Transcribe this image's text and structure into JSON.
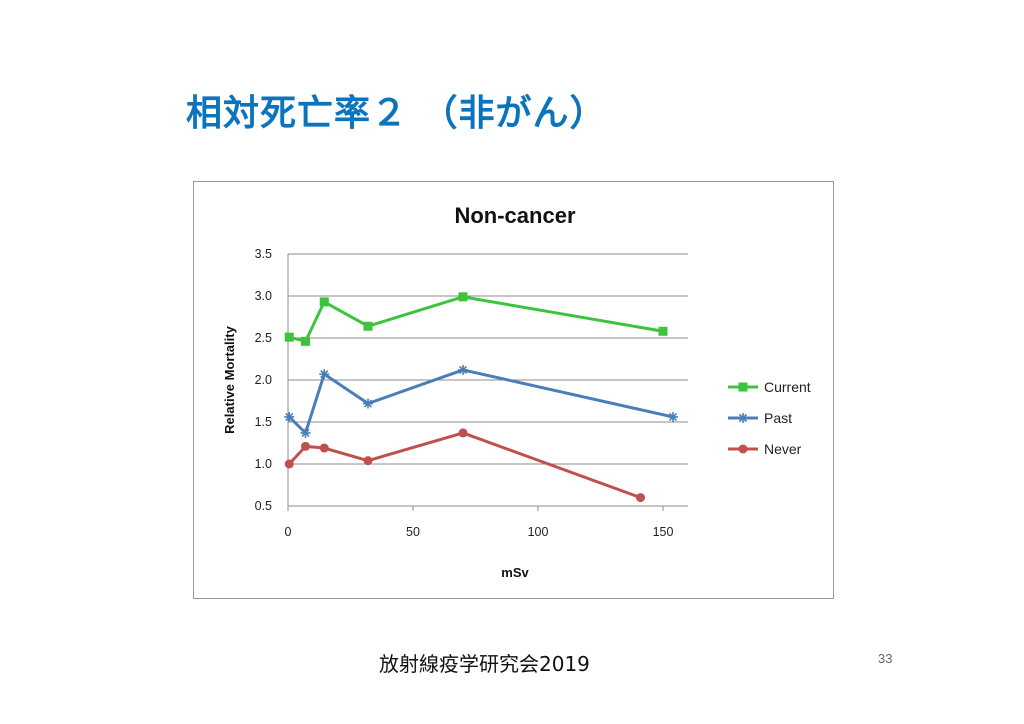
{
  "slide": {
    "title": "相対死亡率２ （非がん）",
    "footer": "放射線疫学研究会2019",
    "page_number": "33"
  },
  "chart_data": {
    "type": "line",
    "title": "Non-cancer",
    "xlabel": "mSv",
    "ylabel": "Relative Mortality",
    "xlim": [
      0,
      160
    ],
    "ylim": [
      0.5,
      3.5
    ],
    "x_ticks": [
      "0",
      "50",
      "100",
      "150"
    ],
    "y_ticks": [
      "0.5",
      "1.0",
      "1.5",
      "2.0",
      "2.5",
      "3.0",
      "3.5"
    ],
    "grid": "horizontal",
    "legend_position": "right",
    "series": [
      {
        "name": "Current",
        "color": "#3cc43c",
        "marker": "square",
        "x": [
          0.5,
          7,
          14.5,
          32,
          70,
          150
        ],
        "y": [
          2.51,
          2.46,
          2.93,
          2.64,
          2.99,
          2.58
        ]
      },
      {
        "name": "Past",
        "color": "#4a7eba",
        "marker": "star",
        "x": [
          0.5,
          7,
          14.5,
          32,
          70,
          154
        ],
        "y": [
          1.56,
          1.37,
          2.07,
          1.72,
          2.12,
          1.56
        ]
      },
      {
        "name": "Never",
        "color": "#c0504d",
        "marker": "circle",
        "x": [
          0.5,
          7,
          14.5,
          32,
          70,
          141
        ],
        "y": [
          1.0,
          1.21,
          1.19,
          1.04,
          1.37,
          0.6
        ]
      }
    ]
  }
}
